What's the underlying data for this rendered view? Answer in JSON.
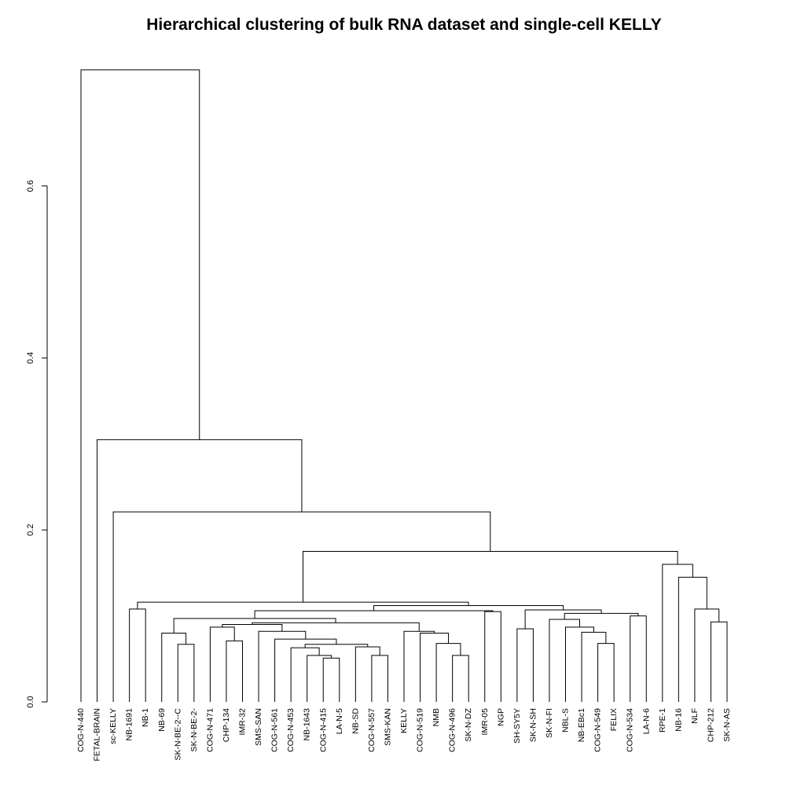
{
  "chart_data": {
    "type": "dendrogram",
    "title": "Hierarchical clustering of bulk RNA dataset and single-cell KELLY",
    "ylabel": "",
    "ylim": [
      0,
      0.735
    ],
    "yticks": [
      0.0,
      0.2,
      0.4,
      0.6
    ],
    "ytick_labels": [
      "0.0",
      "0.2",
      "0.4",
      "0.6"
    ],
    "leaves": [
      "COG-N-440",
      "FETAL-BRAIN",
      "sc-KELLY",
      "NB-1691",
      "NB-1",
      "NB-69",
      "SK-N-BE-2--C",
      "SK-N-BE-2-",
      "COG-N-471",
      "CHP-134",
      "IMR-32",
      "SMS-SAN",
      "COG-N-561",
      "COG-N-453",
      "NB-1643",
      "COG-N-415",
      "LA-N-5",
      "NB-SD",
      "COG-N-557",
      "SMS-KAN",
      "KELLY",
      "COG-N-519",
      "NMB",
      "COG-N-496",
      "SK-N-DZ",
      "IMR-05",
      "NGP",
      "SH-SY5Y",
      "SK-N-SH",
      "SK-N-FI",
      "NBL-S",
      "NB-EBc1",
      "COG-N-549",
      "FELIX",
      "COG-N-534",
      "LA-N-6",
      "RPE-1",
      "NB-16",
      "NLF",
      "CHP-212",
      "SK-N-AS"
    ],
    "merges": [
      {
        "a": "L15",
        "b": "L16",
        "h": 0.051
      },
      {
        "a": "L14",
        "b": "M0",
        "h": 0.054
      },
      {
        "a": "L18",
        "b": "L19",
        "h": 0.054
      },
      {
        "a": "L23",
        "b": "L24",
        "h": 0.054
      },
      {
        "a": "L17",
        "b": "M2",
        "h": 0.064
      },
      {
        "a": "L13",
        "b": "M1",
        "h": 0.063
      },
      {
        "a": "M5",
        "b": "M4",
        "h": 0.067
      },
      {
        "a": "L6",
        "b": "L7",
        "h": 0.067
      },
      {
        "a": "L22",
        "b": "M3",
        "h": 0.068
      },
      {
        "a": "L32",
        "b": "L33",
        "h": 0.068
      },
      {
        "a": "L9",
        "b": "L10",
        "h": 0.071
      },
      {
        "a": "L12",
        "b": "M6",
        "h": 0.073
      },
      {
        "a": "L21",
        "b": "M8",
        "h": 0.08
      },
      {
        "a": "L5",
        "b": "M7",
        "h": 0.08
      },
      {
        "a": "L31",
        "b": "M9",
        "h": 0.081
      },
      {
        "a": "L20",
        "b": "M12",
        "h": 0.082
      },
      {
        "a": "L11",
        "b": "M11",
        "h": 0.082
      },
      {
        "a": "L27",
        "b": "L28",
        "h": 0.085
      },
      {
        "a": "L8",
        "b": "M10",
        "h": 0.087
      },
      {
        "a": "L30",
        "b": "M14",
        "h": 0.087
      },
      {
        "a": "M18",
        "b": "M16",
        "h": 0.09
      },
      {
        "a": "L29",
        "b": "M19",
        "h": 0.096
      },
      {
        "a": "M20",
        "b": "M15",
        "h": 0.092
      },
      {
        "a": "L39",
        "b": "L40",
        "h": 0.093
      },
      {
        "a": "M13",
        "b": "M22",
        "h": 0.097
      },
      {
        "a": "L34",
        "b": "L35",
        "h": 0.1
      },
      {
        "a": "M21",
        "b": "M25",
        "h": 0.103
      },
      {
        "a": "L25",
        "b": "L26",
        "h": 0.105
      },
      {
        "a": "M24",
        "b": "M27",
        "h": 0.106
      },
      {
        "a": "L38",
        "b": "M23",
        "h": 0.108
      },
      {
        "a": "L3",
        "b": "L4",
        "h": 0.108
      },
      {
        "a": "M17",
        "b": "M26",
        "h": 0.107
      },
      {
        "a": "M28",
        "b": "M31",
        "h": 0.112
      },
      {
        "a": "M30",
        "b": "M32",
        "h": 0.116
      },
      {
        "a": "L37",
        "b": "M29",
        "h": 0.145
      },
      {
        "a": "L36",
        "b": "M34",
        "h": 0.16
      },
      {
        "a": "M33",
        "b": "M35",
        "h": 0.175
      },
      {
        "a": "L2",
        "b": "M36",
        "h": 0.221
      },
      {
        "a": "L1",
        "b": "M37",
        "h": 0.305
      },
      {
        "a": "L0",
        "b": "M38",
        "h": 0.735
      }
    ]
  }
}
